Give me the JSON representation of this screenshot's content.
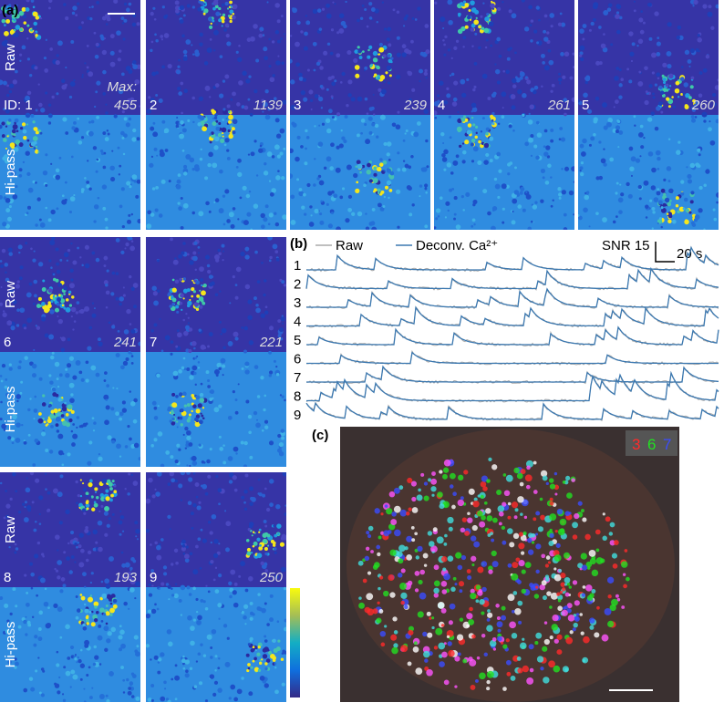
{
  "panel_a": {
    "label": "(a)",
    "row_raw": "Raw",
    "row_hipass": "Hi-pass",
    "max_label": "Max:",
    "tiles": [
      {
        "id": "ID: 1",
        "max": 455
      },
      {
        "id": "2",
        "max": 1139
      },
      {
        "id": "3",
        "max": 239
      },
      {
        "id": "4",
        "max": 261
      },
      {
        "id": "5",
        "max": 260
      },
      {
        "id": "6",
        "max": 241
      },
      {
        "id": "7",
        "max": 221
      },
      {
        "id": "8",
        "max": 193
      },
      {
        "id": "9",
        "max": 250
      }
    ]
  },
  "panel_b": {
    "label": "(b)",
    "legend": [
      "Raw",
      "Deconv. Ca²⁺"
    ],
    "snr_scale": "SNR 15",
    "time_scale": "20 s",
    "trace_labels": [
      "1",
      "2",
      "3",
      "4",
      "5",
      "6",
      "7",
      "8",
      "9"
    ]
  },
  "panel_c": {
    "label": "(c)",
    "channels": [
      {
        "label": "3",
        "color": "#ff2a2a"
      },
      {
        "label": "6",
        "color": "#22e022"
      },
      {
        "label": "7",
        "color": "#3a4cff"
      }
    ]
  }
}
